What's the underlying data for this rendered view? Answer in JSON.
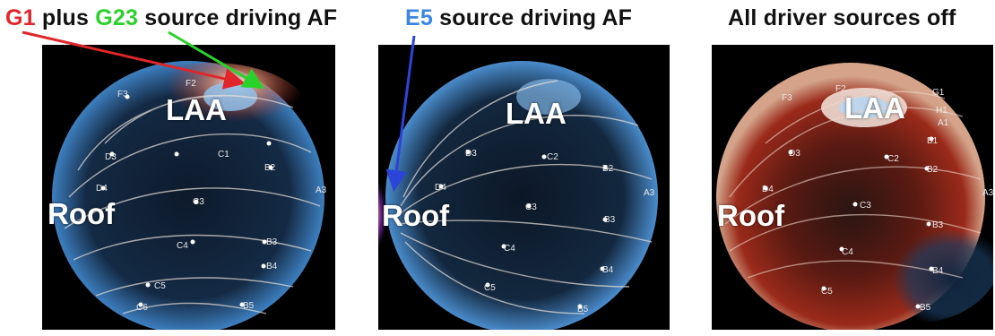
{
  "panels": [
    {
      "title_parts": [
        "G1",
        " plus ",
        "G23",
        " source driving AF"
      ],
      "region_laa": "LAA",
      "region_roof": "Roof"
    },
    {
      "title_parts": [
        "E5",
        " source driving AF"
      ],
      "region_laa": "LAA",
      "region_roof": "Roof"
    },
    {
      "title_parts": [
        "All driver sources off"
      ],
      "region_laa": "LAA",
      "region_roof": "Roof"
    }
  ],
  "colors": {
    "g1": "#e0262a",
    "g23": "#2bd12b",
    "e5": "#3a86e0",
    "hot": "#b02a1a",
    "cold": "#3d7fc0"
  }
}
